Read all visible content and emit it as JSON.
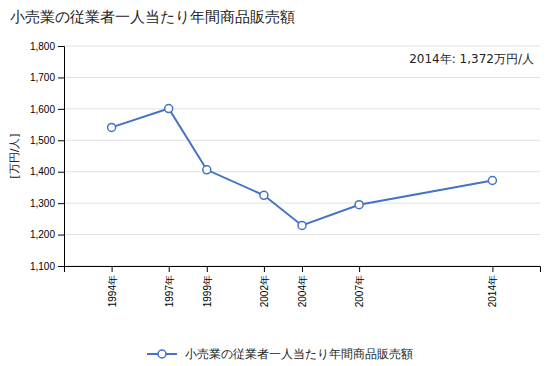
{
  "chart_data": {
    "type": "line",
    "title": "小売業の従業者一人当たり年間商品販売額",
    "ylabel": "[万円/人]",
    "annotation": "2014年: 1,372万円/人",
    "x": [
      1994,
      1997,
      1999,
      2002,
      2004,
      2007,
      2014
    ],
    "xlim": [
      1991.5,
      2016.5
    ],
    "xticks": [
      {
        "value": 1994,
        "label": "1994年"
      },
      {
        "value": 1997,
        "label": "1997年"
      },
      {
        "value": 1999,
        "label": "1999年"
      },
      {
        "value": 2002,
        "label": "2002年"
      },
      {
        "value": 2004,
        "label": "2004年"
      },
      {
        "value": 2007,
        "label": "2007年"
      },
      {
        "value": 2014,
        "label": "2014年"
      }
    ],
    "series": [
      {
        "name": "小売業の従業者一人当たり年間商品販売額",
        "color": "#4472c4",
        "marker": "circle",
        "values": [
          1541,
          1601,
          1406,
          1325,
          1229,
          1295,
          1372
        ]
      }
    ],
    "ylim": [
      1100,
      1800
    ],
    "yticks": [
      {
        "value": 1100,
        "label": "1,100"
      },
      {
        "value": 1200,
        "label": "1,200"
      },
      {
        "value": 1300,
        "label": "1,300"
      },
      {
        "value": 1400,
        "label": "1,400"
      },
      {
        "value": 1500,
        "label": "1,500"
      },
      {
        "value": 1600,
        "label": "1,600"
      },
      {
        "value": 1700,
        "label": "1,700"
      },
      {
        "value": 1800,
        "label": "1,800"
      }
    ],
    "grid": true,
    "legend": "bottom"
  }
}
